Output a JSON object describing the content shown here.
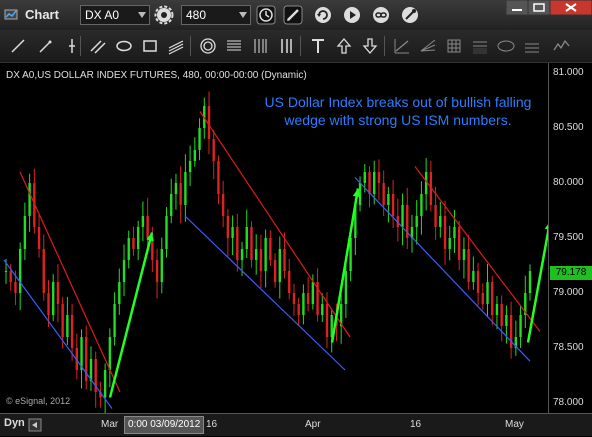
{
  "toolbar": {
    "title": "Chart",
    "symbol": "DX A0",
    "interval": "480"
  },
  "chart": {
    "header": "DX A0,US DOLLAR INDEX FUTURES, 480, 00:00-00:00 (Dynamic)",
    "annotation": "US Dollar Index breaks out of bullish falling wedge with strong US ISM numbers.",
    "copyright": "© eSignal, 2012",
    "last_price": "79.178"
  },
  "time_axis": {
    "mode_label": "Dyn",
    "cursor_date": "0:00 03/09/2012",
    "labels": [
      "Mar",
      "16",
      "Apr",
      "16",
      "May"
    ]
  },
  "colors": {
    "annotation": "#2b7dff",
    "wedge_upper": "#e01b1b",
    "wedge_lower": "#3a5cff",
    "arrows": "#22ff22",
    "last_price_bg": "#1fbf1f",
    "bull_candle": "#22dd22",
    "bear_candle": "#dd2222"
  },
  "chart_data": {
    "type": "candlestick",
    "title": "DX A0,US DOLLAR INDEX FUTURES, 480, 00:00-00:00 (Dynamic)",
    "ylim": [
      78.0,
      81.0
    ],
    "yticks": [
      "81.000",
      "80.500",
      "80.000",
      "79.500",
      "79.000",
      "78.500",
      "78.000"
    ],
    "x_labels": [
      "Mar",
      "16",
      "Apr",
      "16",
      "May"
    ],
    "last_price": 79.178,
    "wedges": [
      {
        "upper": [
          80.1,
          78.1
        ],
        "lower": [
          79.3,
          77.95
        ]
      },
      {
        "upper": [
          80.65,
          78.6
        ],
        "lower": [
          79.7,
          78.3
        ]
      },
      {
        "upper": [
          80.15,
          78.65
        ],
        "lower": [
          80.05,
          78.38
        ]
      }
    ],
    "closes": [
      79.2,
      79.1,
      79.0,
      79.4,
      79.7,
      80.0,
      79.6,
      79.4,
      79.0,
      78.8,
      79.1,
      78.9,
      78.6,
      78.8,
      78.5,
      78.3,
      78.6,
      78.2,
      78.4,
      78.1,
      78.05,
      78.3,
      78.6,
      78.9,
      79.1,
      79.3,
      79.5,
      79.4,
      79.6,
      79.7,
      79.5,
      79.3,
      79.1,
      79.4,
      79.7,
      79.9,
      80.0,
      79.8,
      80.1,
      80.2,
      80.3,
      80.5,
      80.7,
      80.4,
      80.2,
      79.9,
      79.7,
      79.5,
      79.6,
      79.3,
      79.4,
      79.6,
      79.3,
      79.4,
      79.2,
      79.5,
      79.3,
      79.1,
      79.4,
      79.2,
      79.0,
      78.9,
      78.8,
      79.0,
      78.9,
      79.1,
      78.8,
      78.9,
      78.6,
      78.8,
      78.7,
      78.9,
      79.2,
      79.5,
      79.8,
      80.0,
      80.1,
      79.9,
      80.1,
      80.0,
      79.8,
      79.9,
      79.7,
      79.6,
      79.8,
      79.5,
      79.6,
      79.7,
      79.9,
      80.1,
      79.8,
      79.6,
      79.7,
      79.4,
      79.5,
      79.6,
      79.3,
      79.4,
      79.1,
      79.2,
      79.0,
      78.9,
      79.1,
      78.8,
      78.9,
      78.7,
      78.8,
      78.5,
      78.6,
      78.8,
      79.0,
      79.2
    ]
  }
}
